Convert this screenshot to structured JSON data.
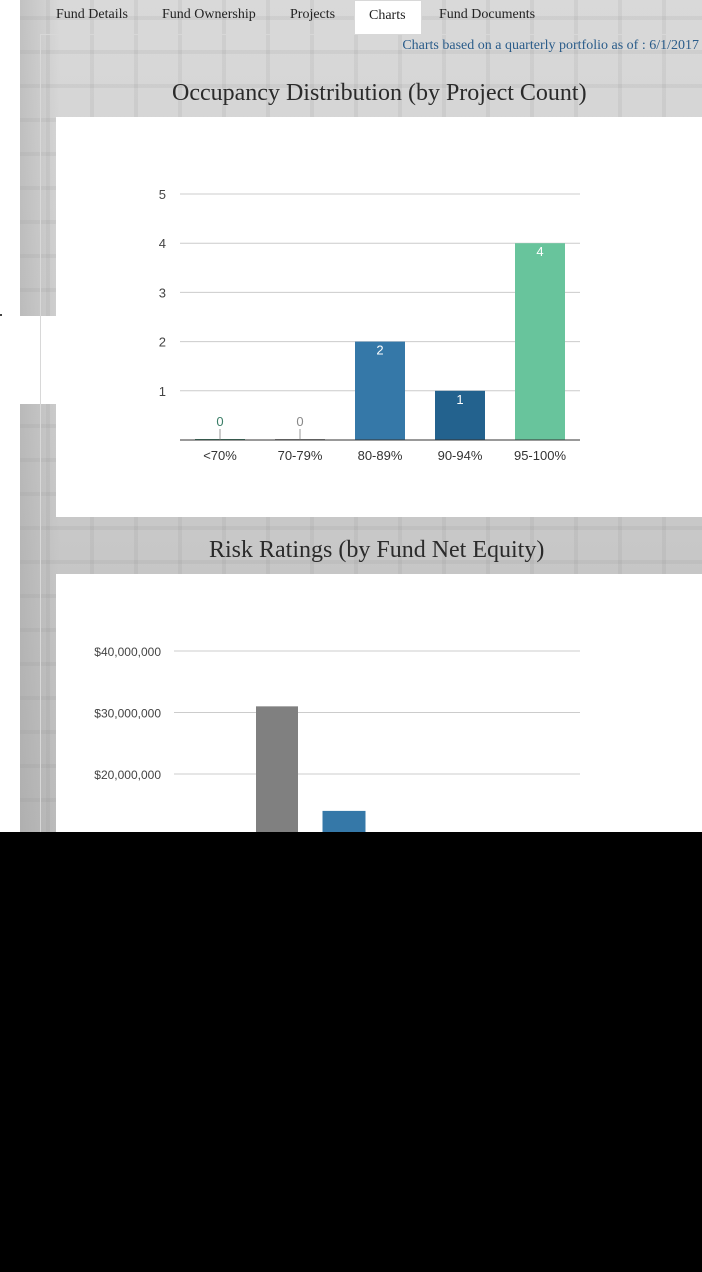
{
  "tabs": [
    {
      "label": "Fund Details",
      "active": false
    },
    {
      "label": "Fund Ownership",
      "active": false
    },
    {
      "label": "Projects",
      "active": false
    },
    {
      "label": "Charts",
      "active": true
    },
    {
      "label": "Fund Documents",
      "active": false
    }
  ],
  "as_of_text": "Charts based on a quarterly portfolio as of : 6/1/2017",
  "chart_titles": {
    "occupancy": "Occupancy Distribution (by Project Count)",
    "risk": "Risk Ratings (by Fund Net Equity)"
  },
  "chart_data": [
    {
      "type": "bar",
      "title": "Occupancy Distribution (by Project Count)",
      "categories": [
        "<70%",
        "70-79%",
        "80-89%",
        "90-94%",
        "95-100%"
      ],
      "values": [
        0,
        0,
        2,
        1,
        4
      ],
      "data_labels": [
        "0",
        "0",
        "2",
        "1",
        "4"
      ],
      "colors": [
        "#3a7d66",
        "#888888",
        "#3578a8",
        "#23628e",
        "#68c49c"
      ],
      "ylim": [
        0,
        5
      ],
      "yticks": [
        "1",
        "2",
        "3",
        "4",
        "5"
      ],
      "grid": true,
      "xlabel": "",
      "ylabel": ""
    },
    {
      "type": "bar",
      "title": "Risk Ratings (by Fund Net Equity)",
      "values": [
        31000000,
        14000000
      ],
      "colors": [
        "#808080",
        "#3578a8"
      ],
      "ylim": [
        0,
        40000000
      ],
      "yticks": [
        "$40,000,000",
        "$30,000,000",
        "$20,000,000"
      ],
      "grid": true,
      "xlabel": "",
      "ylabel": ""
    }
  ]
}
